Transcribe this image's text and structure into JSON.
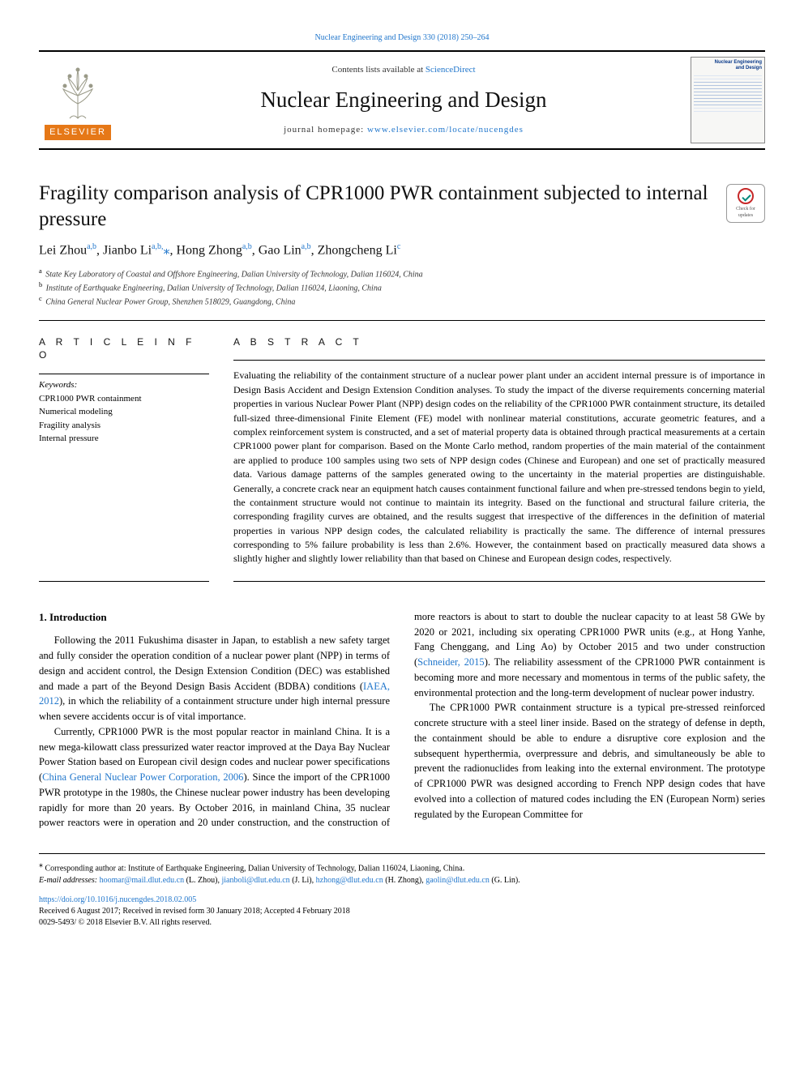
{
  "toplink": {
    "journal": "Nuclear Engineering and Design",
    "citation": "330 (2018) 250–264"
  },
  "header": {
    "contents_prefix": "Contents lists available at ",
    "contents_link": "ScienceDirect",
    "journal_name": "Nuclear Engineering and Design",
    "homepage_prefix": "journal homepage: ",
    "homepage_url": "www.elsevier.com/locate/nucengdes",
    "elsevier_label": "ELSEVIER",
    "cover_title_l1": "Nuclear Engineering",
    "cover_title_l2": "and Design"
  },
  "title": "Fragility comparison analysis of CPR1000 PWR containment subjected to internal pressure",
  "check_badge": {
    "l1": "Check for",
    "l2": "updates"
  },
  "authors_html": "Lei Zhou<sup>a,b</sup>, Jianbo Li<sup>a,b,</sup><span class='sep'>⁎</span>, Hong Zhong<sup>a,b</sup>, Gao Lin<sup>a,b</sup>, Zhongcheng Li<sup>c</sup>",
  "affiliations": [
    {
      "sup": "a",
      "text": "State Key Laboratory of Coastal and Offshore Engineering, Dalian University of Technology, Dalian 116024, China"
    },
    {
      "sup": "b",
      "text": "Institute of Earthquake Engineering, Dalian University of Technology, Dalian 116024, Liaoning, China"
    },
    {
      "sup": "c",
      "text": "China General Nuclear Power Group, Shenzhen 518029, Guangdong, China"
    }
  ],
  "article_info": {
    "heading": "A R T I C L E  I N F O",
    "kw_label": "Keywords:",
    "keywords": [
      "CPR1000 PWR containment",
      "Numerical modeling",
      "Fragility analysis",
      "Internal pressure"
    ]
  },
  "abstract": {
    "heading": "A B S T R A C T",
    "text": "Evaluating the reliability of the containment structure of a nuclear power plant under an accident internal pressure is of importance in Design Basis Accident and Design Extension Condition analyses. To study the impact of the diverse requirements concerning material properties in various Nuclear Power Plant (NPP) design codes on the reliability of the CPR1000 PWR containment structure, its detailed full-sized three-dimensional Finite Element (FE) model with nonlinear material constitutions, accurate geometric features, and a complex reinforcement system is constructed, and a set of material property data is obtained through practical measurements at a certain CPR1000 power plant for comparison. Based on the Monte Carlo method, random properties of the main material of the containment are applied to produce 100 samples using two sets of NPP design codes (Chinese and European) and one set of practically measured data. Various damage patterns of the samples generated owing to the uncertainty in the material properties are distinguishable. Generally, a concrete crack near an equipment hatch causes containment functional failure and when pre-stressed tendons begin to yield, the containment structure would not continue to maintain its integrity. Based on the functional and structural failure criteria, the corresponding fragility curves are obtained, and the results suggest that irrespective of the differences in the definition of material properties in various NPP design codes, the calculated reliability is practically the same. The difference of internal pressures corresponding to 5% failure probability is less than 2.6%. However, the containment based on practically measured data shows a slightly higher and slightly lower reliability than that based on Chinese and European design codes, respectively."
  },
  "body": {
    "section_number": "1.",
    "section_title": "Introduction",
    "p1_a": "Following the 2011 Fukushima disaster in Japan, to establish a new safety target and fully consider the operation condition of a nuclear power plant (NPP) in terms of design and accident control, the Design Extension Condition (DEC) was established and made a part of the Beyond Design Basis Accident (BDBA) conditions (",
    "p1_link": "IAEA, 2012",
    "p1_b": "), in which the reliability of a containment structure under high internal pressure when severe accidents occur is of vital importance.",
    "p2_a": "Currently, CPR1000 PWR is the most popular reactor in mainland China. It is a new mega-kilowatt class pressurized water reactor improved at the Daya Bay Nuclear Power Station based on European civil design codes and nuclear power specifications (",
    "p2_link": "China General Nuclear Power Corporation, 2006",
    "p2_b": "). Since the import of the CPR1000 PWR prototype in the 1980s, the Chinese nuclear power industry has been developing rapidly for more than 20 years. By October 2016, in mainland China, 35 nuclear power reactors were in operation and 20 under ",
    "p2_c": "construction, and the construction of more reactors is about to start to double the nuclear capacity to at least 58 GWe by 2020 or 2021, including six operating CPR1000 PWR units (e.g., at Hong Yanhe, Fang Chenggang, and Ling Ao) by October 2015 and two under construction (",
    "p2_link2": "Schneider, 2015",
    "p2_d": "). The reliability assessment of the CPR1000 PWR containment is becoming more and more necessary and momentous in terms of the public safety, the environmental protection and the long-term development of nuclear power industry.",
    "p3": "The CPR1000 PWR containment structure is a typical pre-stressed reinforced concrete structure with a steel liner inside. Based on the strategy of defense in depth, the containment should be able to endure a disruptive core explosion and the subsequent hyperthermia, overpressure and debris, and simultaneously be able to prevent the radionuclides from leaking into the external environment. The prototype of CPR1000 PWR was designed according to French NPP design codes that have evolved into a collection of matured codes including the EN (European Norm) series regulated by the European Committee for"
  },
  "footnotes": {
    "corr": "Corresponding author at: Institute of Earthquake Engineering, Dalian University of Technology, Dalian 116024, Liaoning, China.",
    "email_label": "E-mail addresses: ",
    "emails": [
      {
        "addr": "hoomar@mail.dlut.edu.cn",
        "who": " (L. Zhou), "
      },
      {
        "addr": "jianboli@dlut.edu.cn",
        "who": " (J. Li), "
      },
      {
        "addr": "hzhong@dlut.edu.cn",
        "who": " (H. Zhong), "
      },
      {
        "addr": "gaolin@dlut.edu.cn",
        "who": " (G. Lin)."
      }
    ],
    "doi": "https://doi.org/10.1016/j.nucengdes.2018.02.005",
    "received": "Received 6 August 2017; Received in revised form 30 January 2018; Accepted 4 February 2018",
    "copyright": "0029-5493/ © 2018 Elsevier B.V. All rights reserved."
  },
  "colors": {
    "link": "#2277cc",
    "elsevier_orange": "#e67817",
    "text": "#000000",
    "cover_blue": "#0a3a8a"
  }
}
